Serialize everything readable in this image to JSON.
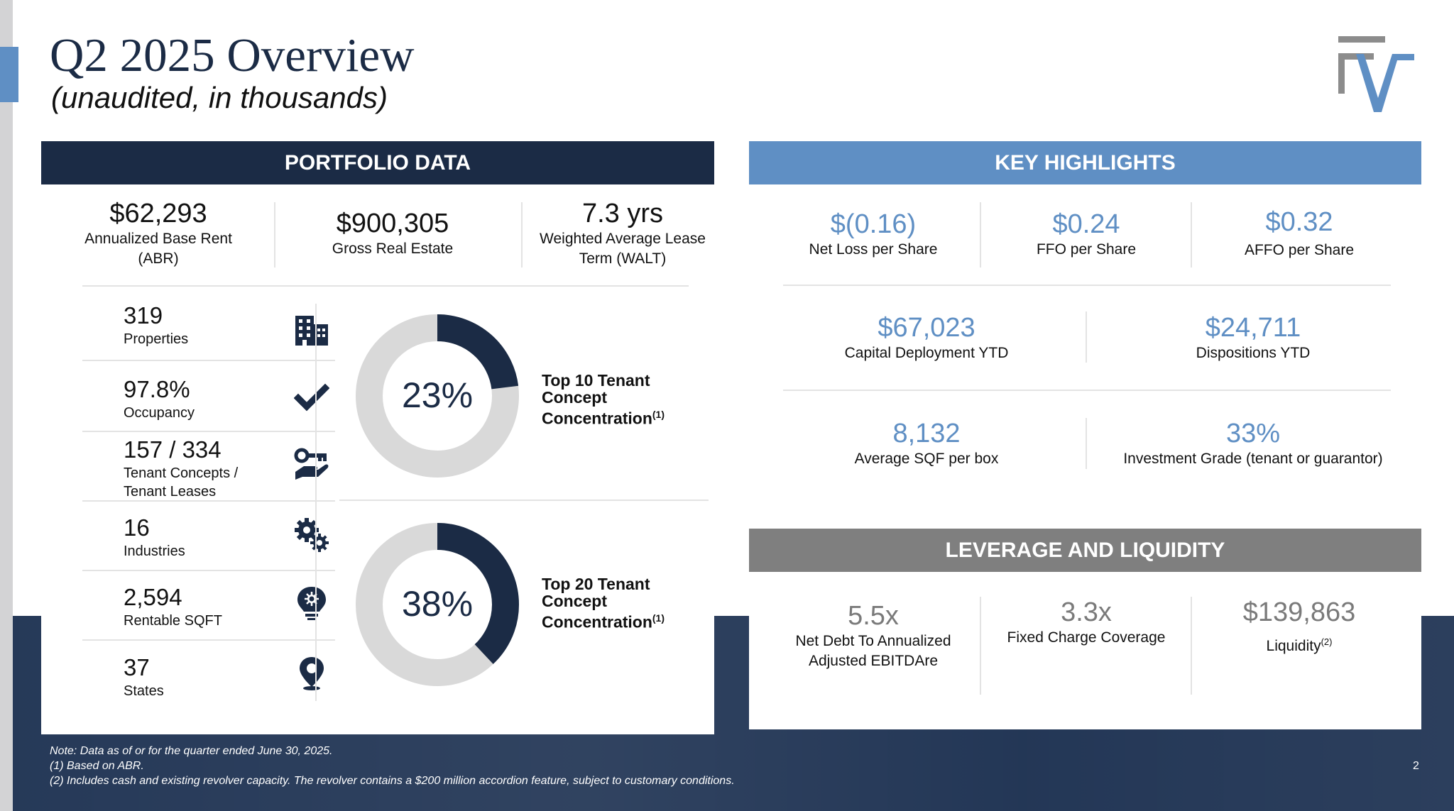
{
  "title": "Q2 2025 Overview",
  "subtitle": "(unaudited, in thousands)",
  "colors": {
    "navy": "#1b2b45",
    "accent_blue": "#5f8fc4",
    "grey_header": "#7f7f7f",
    "donut_track": "#d9d9d9"
  },
  "portfolio": {
    "header": "PORTFOLIO DATA",
    "kpis": [
      {
        "value": "$62,293",
        "label_line1": "Annualized Base Rent",
        "label_line2": "(ABR)"
      },
      {
        "value": "$900,305",
        "label_line1": "Gross Real Estate",
        "label_line2": ""
      },
      {
        "value": "7.3 yrs",
        "label_line1": "Weighted Average Lease",
        "label_line2": "Term (WALT)"
      }
    ],
    "stats": [
      {
        "value": "319",
        "label_line1": "Properties",
        "label_line2": "",
        "icon": "building-icon"
      },
      {
        "value": "97.8%",
        "label_line1": "Occupancy",
        "label_line2": "",
        "icon": "checkmark-icon"
      },
      {
        "value": "157 / 334",
        "label_line1": "Tenant Concepts /",
        "label_line2": "Tenant Leases",
        "icon": "key-hand-icon"
      },
      {
        "value": "16",
        "label_line1": "Industries",
        "label_line2": "",
        "icon": "gears-icon"
      },
      {
        "value": "2,594",
        "label_line1": "Rentable SQFT",
        "label_line2": "",
        "icon": "lightbulb-icon"
      },
      {
        "value": "37",
        "label_line1": "States",
        "label_line2": "",
        "icon": "location-pin-icon"
      }
    ],
    "donuts": [
      {
        "pct_label": "23%",
        "fraction": 0.23,
        "label_line1": "Top 10 Tenant",
        "label_line2": "Concept",
        "label_line3": "Concentration",
        "footnote": "(1)"
      },
      {
        "pct_label": "38%",
        "fraction": 0.38,
        "label_line1": "Top 20 Tenant",
        "label_line2": "Concept",
        "label_line3": "Concentration",
        "footnote": "(1)"
      }
    ]
  },
  "highlights": {
    "header": "KEY HIGHLIGHTS",
    "row1": [
      {
        "value": "$(0.16)",
        "label": "Net Loss per Share"
      },
      {
        "value": "$0.24",
        "label": "FFO per Share"
      },
      {
        "value": "$0.32",
        "label": "AFFO per Share"
      }
    ],
    "row2": [
      {
        "value": "$67,023",
        "label": "Capital Deployment YTD"
      },
      {
        "value": "$24,711",
        "label": "Dispositions YTD"
      }
    ],
    "row3": [
      {
        "value": "8,132",
        "label": "Average SQF per box"
      },
      {
        "value": "33%",
        "label": "Investment Grade (tenant or guarantor)"
      }
    ]
  },
  "leverage": {
    "header": "LEVERAGE AND LIQUIDITY",
    "items": [
      {
        "value": "5.5x",
        "label_line1": "Net Debt To Annualized",
        "label_line2": "Adjusted EBITDAre",
        "footnote": ""
      },
      {
        "value": "3.3x",
        "label_line1": "Fixed Charge Coverage",
        "label_line2": "",
        "footnote": ""
      },
      {
        "value": "$139,863",
        "label_line1": "Liquidity",
        "label_line2": "",
        "footnote": "(2)"
      }
    ]
  },
  "notes": {
    "line1": "Note: Data as of or for the quarter ended June 30, 2025.",
    "line2": "(1) Based on ABR.",
    "line3": "(2) Includes cash and existing revolver capacity. The revolver contains a $200 million accordion feature, subject to customary conditions."
  },
  "page_number": "2"
}
